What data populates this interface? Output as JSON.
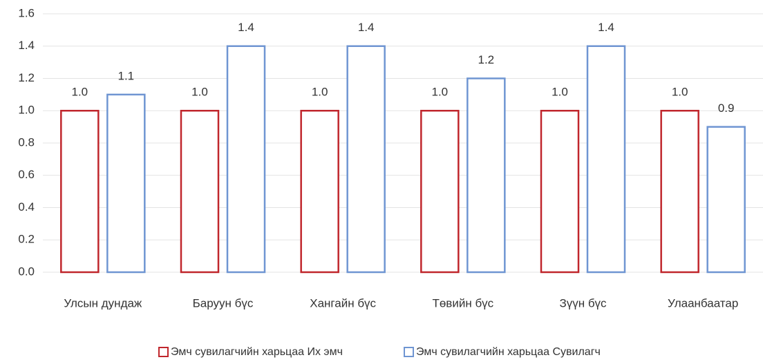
{
  "chart_data": {
    "type": "bar",
    "categories": [
      "Улсын дундаж",
      "Баруун бүс",
      "Хангайн бүс",
      "Төвийн бүс",
      "Зүүн бүс",
      "Улаанбаатар"
    ],
    "series": [
      {
        "name": "Эмч сувилагчийн харьцаа Их эмч",
        "color": "#c0262c",
        "values": [
          1,
          1,
          1,
          1,
          1,
          1
        ],
        "value_labels": [
          "1.0",
          "1.0",
          "1.0",
          "1.0",
          "1.0",
          "1.0"
        ]
      },
      {
        "name": "Эмч сувилагчийн харьцаа Сувилагч",
        "color": "#6f95d2",
        "values": [
          1.1,
          1.4,
          1.4,
          1.2,
          1.4,
          0.9
        ],
        "value_labels": [
          "1.1",
          "1.4",
          "1.4",
          "1.2",
          "1.4",
          "0.9"
        ]
      }
    ],
    "ylim": [
      0,
      1.6
    ],
    "yticks": [
      {
        "value": 0,
        "label": "0.0"
      },
      0.2,
      0.4,
      0.6,
      0.8,
      {
        "value": 1,
        "label": "1.0"
      },
      1.2,
      1.4,
      1.6
    ],
    "grid": true,
    "legend": "bottom"
  }
}
